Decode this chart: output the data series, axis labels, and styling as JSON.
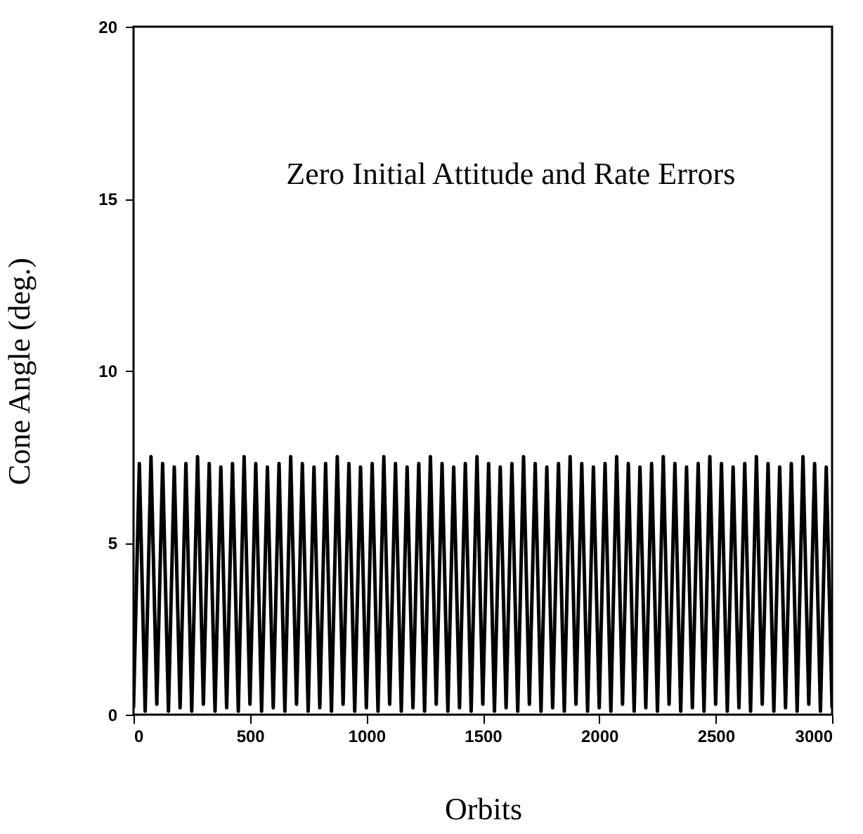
{
  "chart_data": {
    "type": "line",
    "xlabel": "Orbits",
    "ylabel": "Cone Angle (deg.)",
    "annotations": [
      "Zero Initial Attitude and Rate Errors"
    ],
    "xlim": [
      0,
      3000
    ],
    "xticks": [
      0,
      500,
      1000,
      1500,
      2000,
      2500,
      3000
    ],
    "ylim": [
      0,
      20
    ],
    "yticks": [
      0,
      5,
      10,
      15,
      20
    ],
    "grid": false,
    "x": [
      0,
      25,
      50,
      75,
      100,
      125,
      150,
      175,
      200,
      225,
      250,
      275,
      300,
      325,
      350,
      375,
      400,
      425,
      450,
      475,
      500,
      525,
      550,
      575,
      600,
      625,
      650,
      675,
      700,
      725,
      750,
      775,
      800,
      825,
      850,
      875,
      900,
      925,
      950,
      975,
      1000,
      1025,
      1050,
      1075,
      1100,
      1125,
      1150,
      1175,
      1200,
      1225,
      1250,
      1275,
      1300,
      1325,
      1350,
      1375,
      1400,
      1425,
      1450,
      1475,
      1500,
      1525,
      1550,
      1575,
      1600,
      1625,
      1650,
      1675,
      1700,
      1725,
      1750,
      1775,
      1800,
      1825,
      1850,
      1875,
      1900,
      1925,
      1950,
      1975,
      2000,
      2025,
      2050,
      2075,
      2100,
      2125,
      2150,
      2175,
      2200,
      2225,
      2250,
      2275,
      2300,
      2325,
      2350,
      2375,
      2400,
      2425,
      2450,
      2475,
      2500,
      2525,
      2550,
      2575,
      2600,
      2625,
      2650,
      2675,
      2700,
      2725,
      2750,
      2775,
      2800,
      2825,
      2850,
      2875,
      2900,
      2925,
      2950,
      2975,
      3000
    ],
    "series": [
      {
        "color": "#000000",
        "values": [
          0.2,
          7.3,
          0.1,
          7.5,
          0.3,
          7.3,
          0.1,
          7.2,
          0.2,
          7.3,
          0.1,
          7.5,
          0.3,
          7.3,
          0.1,
          7.2,
          0.2,
          7.3,
          0.1,
          7.5,
          0.3,
          7.3,
          0.1,
          7.2,
          0.2,
          7.3,
          0.1,
          7.5,
          0.3,
          7.3,
          0.1,
          7.2,
          0.2,
          7.3,
          0.1,
          7.5,
          0.3,
          7.3,
          0.1,
          7.2,
          0.2,
          7.3,
          0.1,
          7.5,
          0.3,
          7.3,
          0.1,
          7.2,
          0.2,
          7.3,
          0.1,
          7.5,
          0.3,
          7.3,
          0.1,
          7.2,
          0.2,
          7.3,
          0.1,
          7.5,
          0.3,
          7.3,
          0.1,
          7.2,
          0.2,
          7.3,
          0.1,
          7.5,
          0.3,
          7.3,
          0.1,
          7.2,
          0.2,
          7.3,
          0.1,
          7.5,
          0.3,
          7.3,
          0.1,
          7.2,
          0.2,
          7.3,
          0.1,
          7.5,
          0.3,
          7.3,
          0.1,
          7.2,
          0.2,
          7.3,
          0.1,
          7.5,
          0.3,
          7.3,
          0.1,
          7.2,
          0.2,
          7.3,
          0.1,
          7.5,
          0.3,
          7.3,
          0.1,
          7.2,
          0.2,
          7.3,
          0.1,
          7.5,
          0.3,
          7.3,
          0.1,
          7.2,
          0.2,
          7.3,
          0.1,
          7.5,
          0.3,
          7.3,
          0.1,
          7.2,
          0.2
        ]
      }
    ]
  }
}
